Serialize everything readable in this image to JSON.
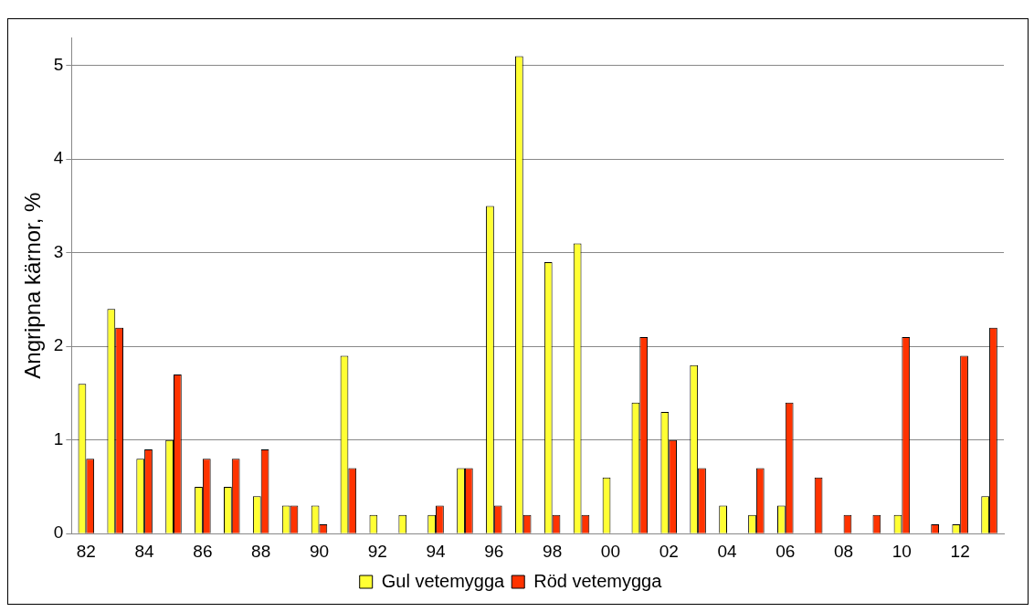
{
  "chart_data": {
    "type": "bar",
    "ylabel": "Angripna kärnor, %",
    "categories": [
      "82",
      null,
      "84",
      null,
      "86",
      null,
      "88",
      null,
      "90",
      null,
      "92",
      null,
      "94",
      null,
      "96",
      null,
      "98",
      null,
      "00",
      null,
      "02",
      null,
      "04",
      null,
      "06",
      null,
      "08",
      null,
      "10",
      null,
      "12",
      null
    ],
    "series": [
      {
        "name": "Gul vetemygga",
        "color": "#ffff33",
        "values": [
          1.6,
          2.4,
          0.8,
          1.0,
          0.5,
          0.5,
          0.4,
          0.3,
          0.3,
          1.9,
          0.2,
          0.2,
          0.2,
          0.7,
          3.5,
          5.1,
          2.9,
          3.1,
          0.6,
          1.4,
          1.3,
          1.8,
          0.3,
          0.2,
          0.3,
          0,
          0,
          0,
          0.2,
          0,
          0.1,
          0.4
        ]
      },
      {
        "name": "Röd vetemygga",
        "color": "#ff3300",
        "values": [
          0.8,
          2.2,
          0.9,
          1.7,
          0.8,
          0.8,
          0.9,
          0.3,
          0.1,
          0.7,
          0,
          0,
          0.3,
          0.7,
          0.3,
          0.2,
          0.2,
          0.2,
          0,
          2.1,
          1.0,
          0.7,
          0,
          0.7,
          1.4,
          0.6,
          0.2,
          0.2,
          2.1,
          0.1,
          1.9,
          2.2
        ]
      }
    ],
    "ylim": [
      0,
      5.3
    ],
    "yticks": [
      0,
      1,
      2,
      3,
      4,
      5
    ],
    "grid": "y",
    "legend": "bottom"
  }
}
